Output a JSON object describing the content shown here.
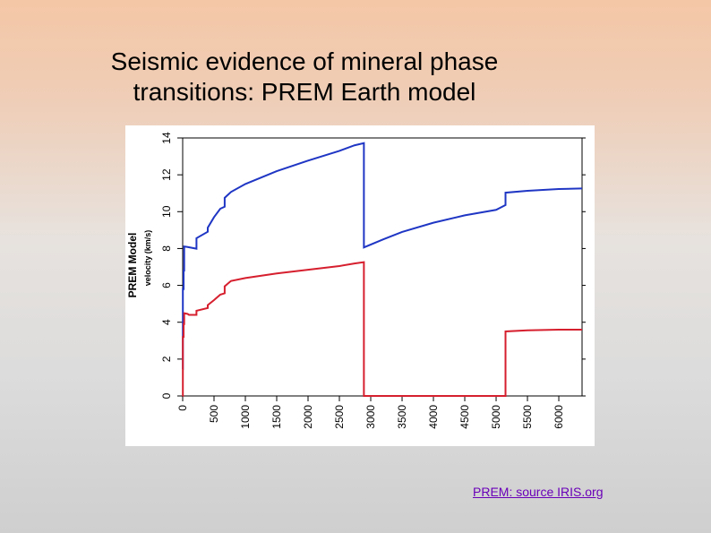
{
  "slide": {
    "title_line1": "Seismic evidence of mineral phase",
    "title_line2": "transitions:  PREM Earth model",
    "source_link": "PREM: source IRIS.org"
  },
  "chart_data": {
    "type": "line",
    "title": "PREM Model",
    "xlabel": "",
    "ylabel": "velocity (km/s)",
    "xlim": [
      0,
      6371
    ],
    "ylim": [
      0,
      14
    ],
    "x_ticks": [
      0,
      500,
      1000,
      1500,
      2000,
      2500,
      3000,
      3500,
      4000,
      4500,
      5000,
      5500,
      6000
    ],
    "y_ticks": [
      0,
      2,
      4,
      6,
      8,
      10,
      12,
      14
    ],
    "grid": false,
    "series": [
      {
        "color": "#1f36c4",
        "points": [
          [
            0,
            1.45
          ],
          [
            3,
            1.45
          ],
          [
            3,
            5.8
          ],
          [
            15,
            5.8
          ],
          [
            15,
            6.8
          ],
          [
            24,
            6.8
          ],
          [
            24,
            8.11
          ],
          [
            80,
            8.08
          ],
          [
            220,
            7.99
          ],
          [
            220,
            8.56
          ],
          [
            400,
            8.91
          ],
          [
            400,
            9.13
          ],
          [
            500,
            9.7
          ],
          [
            600,
            10.16
          ],
          [
            670,
            10.27
          ],
          [
            670,
            10.75
          ],
          [
            771,
            11.07
          ],
          [
            1000,
            11.5
          ],
          [
            1500,
            12.2
          ],
          [
            2000,
            12.77
          ],
          [
            2500,
            13.3
          ],
          [
            2741,
            13.6
          ],
          [
            2891,
            13.72
          ],
          [
            2891,
            8.06
          ],
          [
            3200,
            8.5
          ],
          [
            3500,
            8.9
          ],
          [
            4000,
            9.4
          ],
          [
            4500,
            9.8
          ],
          [
            5000,
            10.1
          ],
          [
            5150,
            10.36
          ],
          [
            5150,
            11.03
          ],
          [
            5500,
            11.13
          ],
          [
            6000,
            11.23
          ],
          [
            6371,
            11.26
          ]
        ]
      },
      {
        "color": "#d61f2e",
        "points": [
          [
            0,
            0
          ],
          [
            3,
            0
          ],
          [
            3,
            3.2
          ],
          [
            15,
            3.2
          ],
          [
            15,
            3.9
          ],
          [
            24,
            3.9
          ],
          [
            24,
            4.49
          ],
          [
            80,
            4.45
          ],
          [
            100,
            4.4
          ],
          [
            220,
            4.4
          ],
          [
            220,
            4.62
          ],
          [
            400,
            4.77
          ],
          [
            400,
            4.93
          ],
          [
            500,
            5.2
          ],
          [
            600,
            5.5
          ],
          [
            670,
            5.57
          ],
          [
            670,
            5.95
          ],
          [
            771,
            6.24
          ],
          [
            1000,
            6.4
          ],
          [
            1500,
            6.65
          ],
          [
            2000,
            6.85
          ],
          [
            2500,
            7.05
          ],
          [
            2741,
            7.19
          ],
          [
            2891,
            7.26
          ],
          [
            2891,
            0
          ],
          [
            5150,
            0
          ],
          [
            5150,
            3.5
          ],
          [
            5500,
            3.56
          ],
          [
            6000,
            3.6
          ],
          [
            6371,
            3.6
          ]
        ]
      }
    ]
  }
}
